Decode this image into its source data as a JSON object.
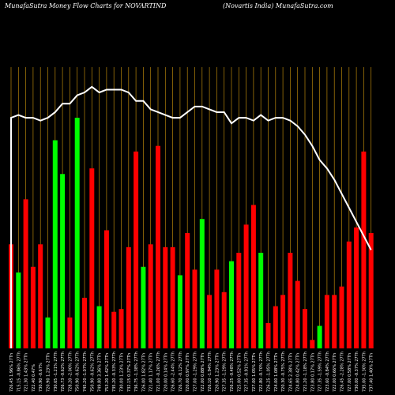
{
  "header": {
    "title_left": "MunafaSutra  Money Flow  Charts for NOVARTIND",
    "title_right": "(Novartis India) MunafaSutra.com"
  },
  "colors": {
    "background": "#000000",
    "up": "#00ff00",
    "down": "#ff0000",
    "grid": "#b8860b",
    "line": "#ffffff",
    "text": "#ffffff"
  },
  "chart_data": {
    "type": "bar",
    "title": "MunafaSutra  Money Flow  Charts for NOVARTIND",
    "subtitle": "(Novartis India) MunafaSutra.com",
    "grid": true,
    "categories": [
      "726.45 1.96% 27Th",
      "715.15 -0.86% 27Th",
      "721.30 1.43% 27Th",
      "722.40 0.47%",
      "730.90 -0.67%",
      "720.90 1.23% 27Th",
      "730.65 -1.21% 27Th",
      "726.73 -0.62% 27Th",
      "728.20 -2.00% 27Th",
      "750.90 -0.62% 27Th",
      "745.20 -1.07% 27Th",
      "750.90 -0.62% 27Th",
      "749.80 3.36% 27Th",
      "753.20 1.42% 27Th",
      "735.20 -0.33% 27Th",
      "730.00 1.23% 27Th",
      "732.15 0.37% 27Th",
      "736.75 -1.38% 27Th",
      "726.00 1.82% 27Th",
      "721.40 1.17% 27Th",
      "721.00 -0.26% 27Th",
      "720.00 0.14% 27Th",
      "726.60 -2.44% 27Th",
      "726.70 -0.12% 27Th",
      "720.00 0.97% 27Th",
      "727.00 -1.29% 27Th",
      "722.00 0.88% 27Th",
      "726.10 -1.94% 27Th",
      "720.90 1.23% 27Th",
      "727.35 -1.29% 27Th",
      "726.25 -0.48% 27Th",
      "725.00 0.52% 27Th",
      "727.35 -0.91% 27Th",
      "727.00 1.05% 27Th",
      "722.80 -0.70% 27Th",
      "726.25 -1.05% 27Th",
      "724.00 1.08% 27Th",
      "720.30 -0.75% 27Th",
      "724.65 2.38% 27Th",
      "724.80 0.42% 27Th",
      "721.20 -1.18% 27Th",
      "723.80 0.17% 27Th",
      "727.35 -1.59% 27Th",
      "723.60 -0.84% 27Th",
      "722.00 0.66% 27Th",
      "726.45 -2.28% 27Th",
      "727.00 0.58% 27Th",
      "730.00 -0.37% 27Th",
      "735.00 -1.30% 27Th",
      "737.40 1.40% 27Th"
    ],
    "values": [
      37,
      27,
      53,
      29,
      37,
      11,
      74,
      62,
      11,
      82,
      18,
      64,
      15,
      42,
      13,
      14,
      36,
      70,
      29,
      37,
      72,
      36,
      36,
      26,
      41,
      28,
      46,
      19,
      28,
      20,
      31,
      34,
      44,
      51,
      34,
      9,
      15,
      19,
      34,
      24,
      14,
      3,
      8,
      19,
      19,
      22,
      38,
      43,
      70,
      41
    ],
    "bar_directions": [
      "down",
      "up",
      "down",
      "down",
      "down",
      "up",
      "up",
      "up",
      "down",
      "up",
      "down",
      "down",
      "up",
      "down",
      "down",
      "down",
      "down",
      "down",
      "up",
      "down",
      "down",
      "down",
      "down",
      "up",
      "down",
      "down",
      "up",
      "down",
      "down",
      "down",
      "up",
      "down",
      "down",
      "down",
      "up",
      "down",
      "down",
      "down",
      "down",
      "down",
      "down",
      "down",
      "up",
      "down",
      "down",
      "down",
      "down",
      "down",
      "down",
      "down"
    ],
    "line_values": [
      82,
      83,
      82,
      82,
      81,
      82,
      84,
      87,
      87,
      90,
      91,
      93,
      91,
      92,
      92,
      92,
      91,
      88,
      88,
      85,
      84,
      83,
      82,
      82,
      84,
      86,
      86,
      85,
      84,
      84,
      80,
      82,
      82,
      81,
      83,
      81,
      82,
      82,
      81,
      79,
      76,
      72,
      67,
      64,
      60,
      55,
      50,
      45,
      40,
      35
    ],
    "ylim": [
      0,
      100
    ]
  }
}
